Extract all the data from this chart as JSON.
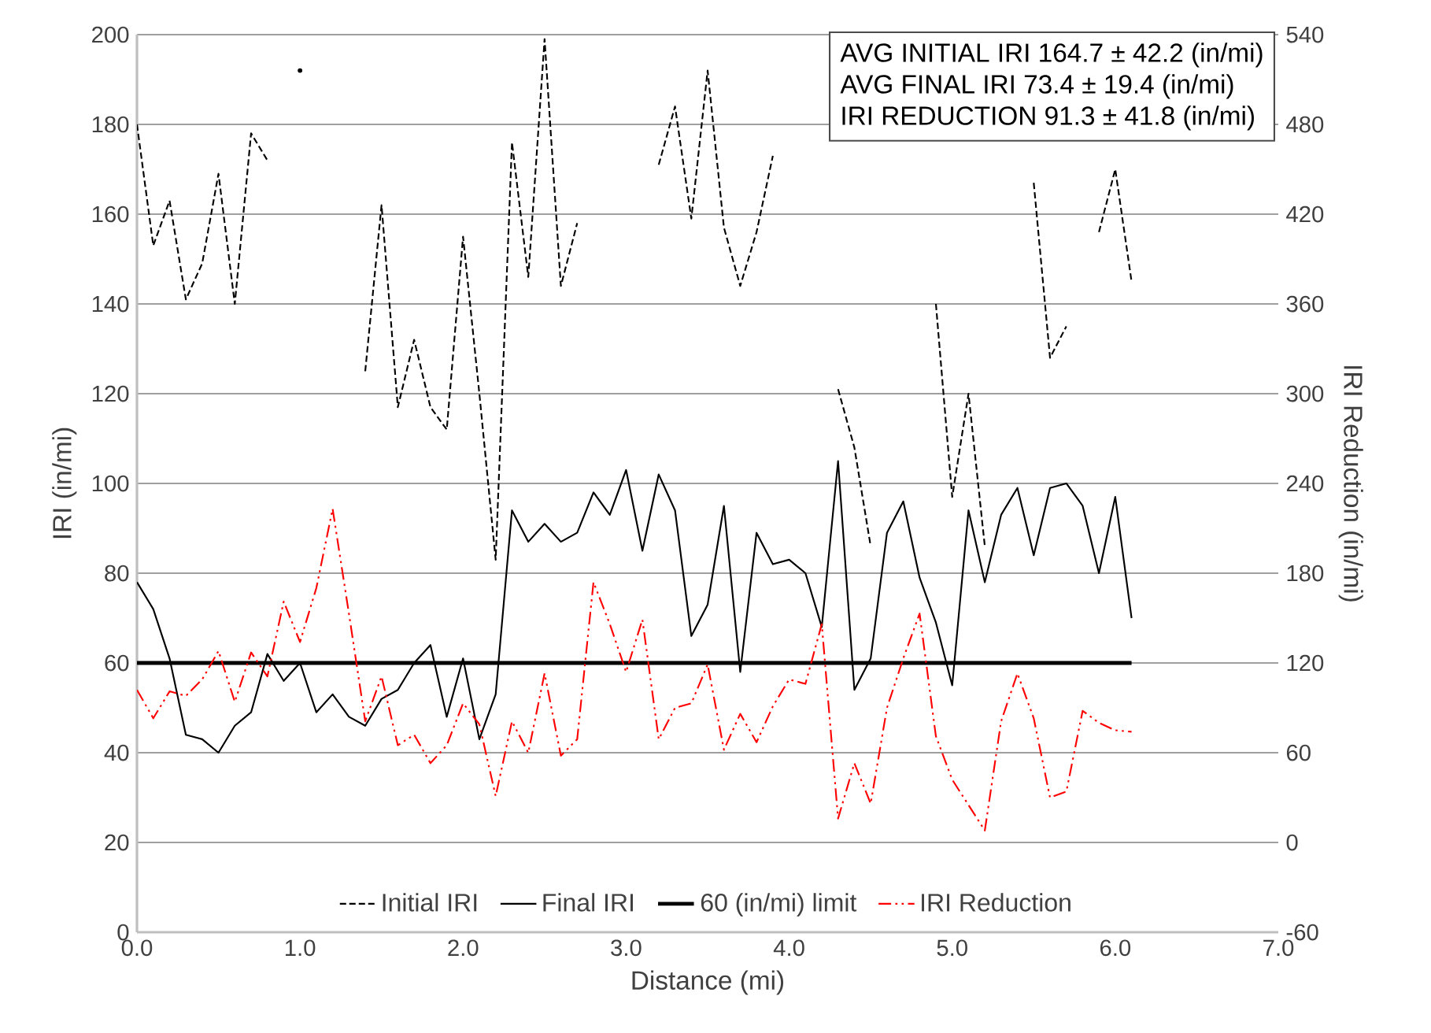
{
  "chart_data": {
    "type": "line",
    "xlabel": "Distance (mi)",
    "ylabel": "IRI (in/mi)",
    "y2label": "IRI Reduction (in/mi)",
    "x": [
      0,
      0.1,
      0.2,
      0.3,
      0.4,
      0.5,
      0.6,
      0.7,
      0.8,
      0.9,
      1.0,
      1.1,
      1.2,
      1.3,
      1.4,
      1.5,
      1.6,
      1.7,
      1.8,
      1.9,
      2.0,
      2.1,
      2.2,
      2.3,
      2.4,
      2.5,
      2.6,
      2.7,
      2.8,
      2.9,
      3.0,
      3.1,
      3.2,
      3.3,
      3.4,
      3.5,
      3.6,
      3.7,
      3.8,
      3.9,
      4.0,
      4.1,
      4.2,
      4.3,
      4.4,
      4.5,
      4.6,
      4.7,
      4.8,
      4.9,
      5.0,
      5.1,
      5.2,
      5.3,
      5.4,
      5.5,
      5.6,
      5.7,
      5.8,
      5.9,
      6.0,
      6.1
    ],
    "series": [
      {
        "name": "Initial IRI",
        "color": "#000000",
        "line_style": "dashed",
        "values": [
          180,
          153,
          163,
          141,
          149,
          169,
          140,
          178,
          172,
          null,
          192,
          null,
          null,
          null,
          125,
          162,
          117,
          132,
          117,
          112,
          155,
          120,
          83,
          176,
          146,
          199,
          144,
          158,
          null,
          null,
          null,
          null,
          171,
          184,
          159,
          192,
          157,
          144,
          156,
          173,
          null,
          null,
          null,
          121,
          108,
          86,
          null,
          null,
          null,
          140,
          97,
          120,
          86,
          null,
          null,
          167,
          128,
          135,
          null,
          156,
          170,
          145
        ]
      },
      {
        "name": "Final IRI",
        "color": "#000000",
        "line_style": "solid",
        "values": [
          78,
          72,
          61,
          44,
          43,
          40,
          46,
          49,
          62,
          56,
          60,
          49,
          53,
          48,
          46,
          52,
          54,
          60,
          64,
          48,
          61,
          43,
          53,
          94,
          87,
          91,
          87,
          89,
          98,
          93,
          103,
          85,
          102,
          94,
          66,
          73,
          95,
          58,
          89,
          82,
          83,
          80,
          68,
          105,
          54,
          61,
          89,
          96,
          79,
          69,
          55,
          94,
          78,
          93,
          99,
          84,
          99,
          100,
          95,
          80,
          97,
          70
        ]
      },
      {
        "name": "60 (in/mi) limit",
        "color": "#000000",
        "line_style": "solid",
        "x": [
          0,
          6.1
        ],
        "values": [
          60,
          60
        ]
      },
      {
        "name": "IRI Reduction",
        "color": "#ff0000",
        "line_style": "dashdot",
        "axis": "y2",
        "values": [
          102,
          83,
          101,
          98,
          109,
          128,
          94,
          127,
          111,
          161,
          134,
          170,
          223,
          153,
          81,
          111,
          65,
          72,
          53,
          65,
          93,
          79,
          31,
          81,
          60,
          113,
          58,
          69,
          174,
          146,
          114,
          149,
          69,
          90,
          93,
          119,
          62,
          86,
          67,
          91,
          109,
          106,
          146,
          16,
          53,
          26,
          90,
          123,
          153,
          71,
          42,
          25,
          8,
          81,
          113,
          83,
          30,
          34,
          88,
          80,
          75,
          74
        ]
      }
    ],
    "xlim": [
      0,
      7
    ],
    "xticks": [
      {
        "value": 0,
        "label": "0.0"
      },
      {
        "value": 1,
        "label": "1.0"
      },
      {
        "value": 2,
        "label": "2.0"
      },
      {
        "value": 3,
        "label": "3.0"
      },
      {
        "value": 4,
        "label": "4.0"
      },
      {
        "value": 5,
        "label": "5.0"
      },
      {
        "value": 6,
        "label": "6.0"
      },
      {
        "value": 7,
        "label": "7.0"
      }
    ],
    "ylim": [
      0,
      200
    ],
    "yticks": [
      0,
      20,
      40,
      60,
      80,
      100,
      120,
      140,
      160,
      180,
      200
    ],
    "y2lim": [
      -60,
      540
    ],
    "y2ticks": [
      -60,
      0,
      60,
      120,
      180,
      240,
      300,
      360,
      420,
      480,
      540
    ],
    "grid": "y",
    "legend": "bottom",
    "marker": "none",
    "annotations": [
      "AVG INITIAL IRI  164.7  ±  42.2  (in/mi)",
      "AVG FINAL  IRI  73.4  ±  19.4  (in/mi)",
      "IRI REDUCTION  91.3  ±  41.8  (in/mi)"
    ]
  }
}
